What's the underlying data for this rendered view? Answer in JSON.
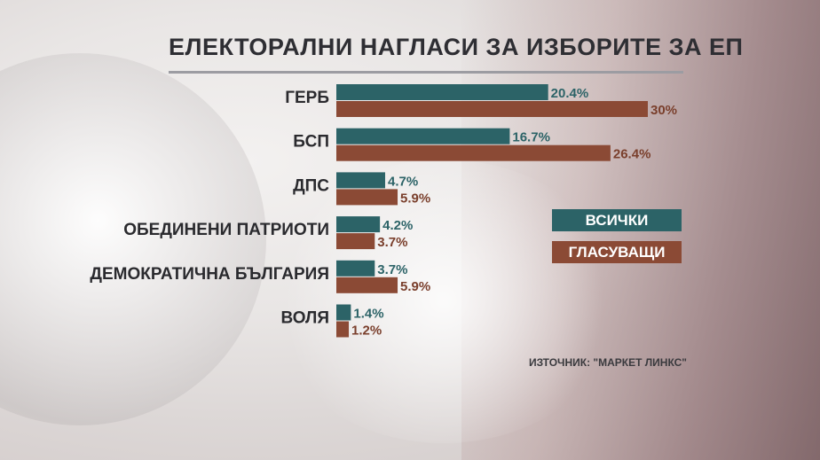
{
  "title": "ЕЛЕКТОРАЛНИ НАГЛАСИ ЗА ИЗБОРИТЕ ЗА ЕП",
  "source": "ИЗТОЧНИК: \"МАРКЕТ ЛИНКС\"",
  "legend": {
    "all": "ВСИЧКИ",
    "voters": "ГЛАСУВАЩИ"
  },
  "colors": {
    "all": "#2c6367",
    "voters": "#8b4a35",
    "all_text": "#2c6367",
    "voters_text": "#7a3f2c"
  },
  "chart_data": {
    "type": "bar",
    "orientation": "horizontal",
    "title": "ЕЛЕКТОРАЛНИ НАГЛАСИ ЗА ИЗБОРИТЕ ЗА ЕП",
    "categories": [
      "ГЕРБ",
      "БСП",
      "ДПС",
      "ОБЕДИНЕНИ ПАТРИОТИ",
      "ДЕМОКРАТИЧНА БЪЛГАРИЯ",
      "ВОЛЯ"
    ],
    "series": [
      {
        "name": "ВСИЧКИ",
        "values": [
          20.4,
          16.7,
          4.7,
          4.2,
          3.7,
          1.4
        ],
        "labels": [
          "20.4%",
          "16.7%",
          "4.7%",
          "4.2%",
          "3.7%",
          "1.4%"
        ]
      },
      {
        "name": "ГЛАСУВАЩИ",
        "values": [
          30,
          26.4,
          5.9,
          3.7,
          5.9,
          1.2
        ],
        "labels": [
          "30%",
          "26.4%",
          "5.9%",
          "3.7%",
          "5.9%",
          "1.2%"
        ]
      }
    ],
    "xlim": [
      0,
      30
    ],
    "legend_position": "right",
    "grid": false
  }
}
